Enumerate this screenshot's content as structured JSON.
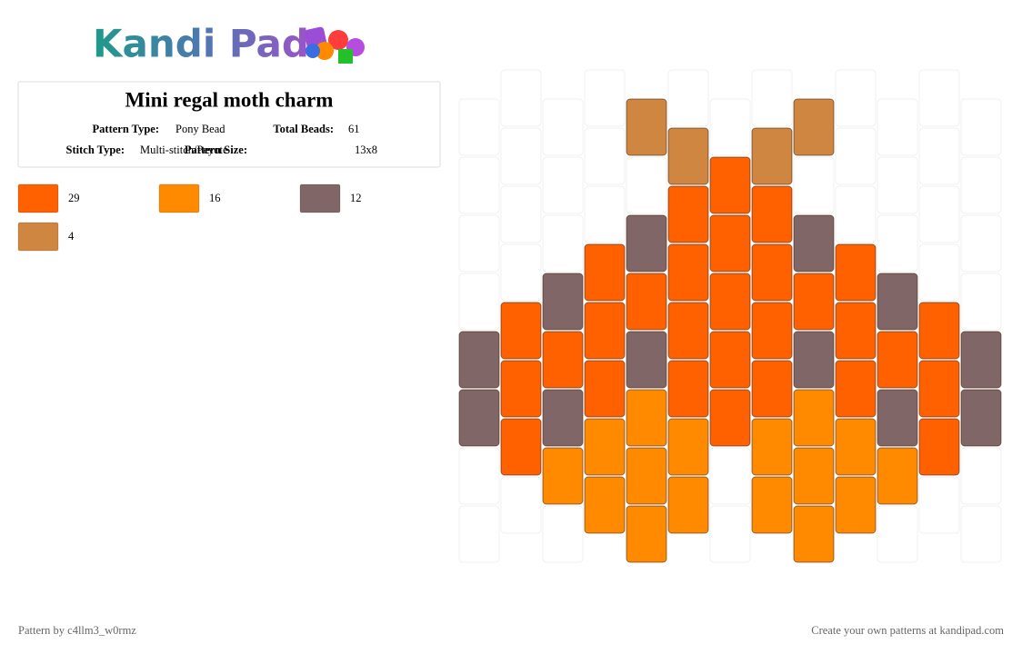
{
  "header": {
    "logo": "Kandi Pad"
  },
  "info": {
    "title": "Mini regal moth charm",
    "fields": [
      {
        "label": "Pattern Type:",
        "value": "Pony Bead"
      },
      {
        "label": "Total Beads:",
        "value": "61"
      },
      {
        "label": "Stitch Type:",
        "value": "Multi-stitch/Peyote"
      },
      {
        "label": "Pattern Size:",
        "value": "13x8"
      }
    ]
  },
  "palette": [
    {
      "color": "#ff6000",
      "count": 29
    },
    {
      "color": "#ff8a00",
      "count": 16
    },
    {
      "color": "#806666",
      "count": 12
    },
    {
      "color": "#cf8640",
      "count": 4
    }
  ],
  "grid": [
    [
      null,
      null,
      null,
      null,
      2,
      2,
      null,
      null
    ],
    [
      null,
      null,
      null,
      null,
      0,
      0,
      0,
      null
    ],
    [
      null,
      null,
      null,
      2,
      0,
      2,
      1,
      null
    ],
    [
      null,
      null,
      null,
      0,
      0,
      0,
      1,
      1
    ],
    [
      3,
      null,
      2,
      0,
      2,
      1,
      1,
      1
    ],
    [
      null,
      3,
      0,
      0,
      0,
      0,
      1,
      1
    ],
    [
      null,
      0,
      0,
      0,
      0,
      0,
      null,
      null
    ],
    [
      null,
      3,
      0,
      0,
      0,
      0,
      1,
      1
    ],
    [
      3,
      null,
      2,
      0,
      2,
      1,
      1,
      1
    ],
    [
      null,
      null,
      null,
      0,
      0,
      0,
      1,
      1
    ],
    [
      null,
      null,
      null,
      2,
      0,
      2,
      1,
      null
    ],
    [
      null,
      null,
      null,
      null,
      0,
      0,
      0,
      null
    ],
    [
      null,
      null,
      null,
      null,
      2,
      2,
      null,
      null
    ]
  ],
  "footer": {
    "left": "Pattern by c4llm3_w0rmz",
    "right": "Create your own patterns at kandipad.com"
  }
}
